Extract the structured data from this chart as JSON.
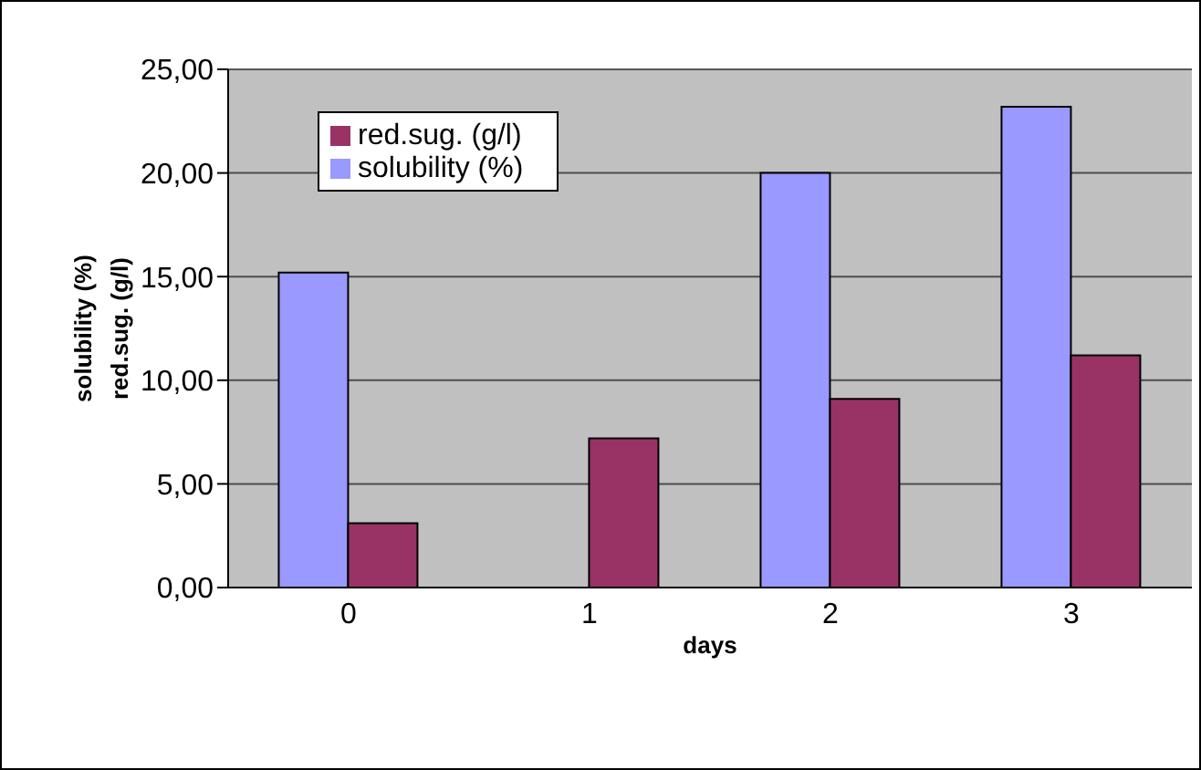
{
  "chart_data": {
    "type": "bar",
    "xlabel": "days",
    "ylabel": "solubility (%)\nred.sug. (g/l)",
    "categories": [
      "0",
      "1",
      "2",
      "3"
    ],
    "series": [
      {
        "name": "solubility (%)",
        "color": "#9999ff",
        "values": [
          15.2,
          null,
          20.0,
          23.2
        ]
      },
      {
        "name": "red.sug. (g/l)",
        "color": "#993366",
        "values": [
          3.1,
          7.2,
          9.1,
          11.2
        ]
      }
    ],
    "ylim": [
      0,
      25
    ],
    "yticks": [
      {
        "value": 0,
        "label": "0,00"
      },
      {
        "value": 5,
        "label": "5,00"
      },
      {
        "value": 10,
        "label": "10,00"
      },
      {
        "value": 15,
        "label": "15,00"
      },
      {
        "value": 20,
        "label": "20,00"
      },
      {
        "value": 25,
        "label": "25,00"
      }
    ],
    "grid": "y",
    "legend": "top left"
  }
}
